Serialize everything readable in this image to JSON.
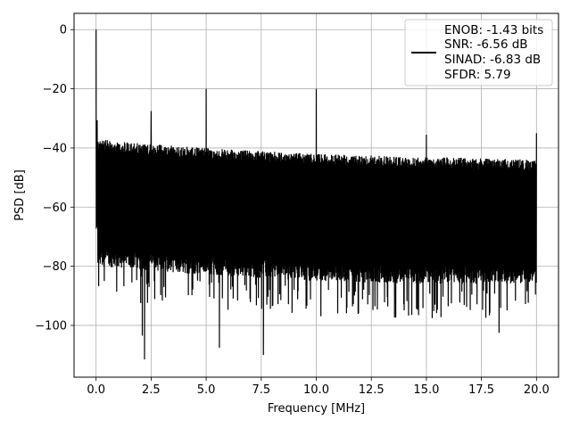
{
  "chart_data": {
    "type": "line",
    "title": "",
    "xlabel": "Frequency [MHz]",
    "ylabel": "PSD [dB]",
    "xlim": [
      -1.0,
      21.0
    ],
    "ylim": [
      -117.5,
      5.5
    ],
    "xticks": [
      0.0,
      2.5,
      5.0,
      7.5,
      10.0,
      12.5,
      15.0,
      17.5,
      20.0
    ],
    "xtick_labels": [
      "0.0",
      "2.5",
      "5.0",
      "7.5",
      "10.0",
      "12.5",
      "15.0",
      "17.5",
      "20.0"
    ],
    "yticks": [
      0,
      -20,
      -40,
      -60,
      -80,
      -100
    ],
    "ytick_labels": [
      "0",
      "−20",
      "−40",
      "−60",
      "−80",
      "−100"
    ],
    "grid": true,
    "legend_placement": "top-right",
    "line_color": "#000000",
    "series": [
      {
        "legend_lines": [
          "ENOB: -1.43 bits",
          "SNR: -6.56 dB",
          "SINAD: -6.83 dB",
          "SFDR: 5.79"
        ],
        "noise_floor_top": [
          [
            0.1,
            -37
          ],
          [
            2.0,
            -38.5
          ],
          [
            5.0,
            -40
          ],
          [
            10.0,
            -42
          ],
          [
            15.0,
            -43
          ],
          [
            20.0,
            -44
          ]
        ],
        "noise_floor_bottom": [
          [
            0.1,
            -80
          ],
          [
            5.0,
            -83
          ],
          [
            10.0,
            -85
          ],
          [
            15.0,
            -86
          ],
          [
            20.0,
            -86
          ]
        ],
        "spurs": [
          {
            "x": 0.0,
            "y": 0
          },
          {
            "x": 0.05,
            "y": -28
          },
          {
            "x": 2.5,
            "y": -27.5
          },
          {
            "x": 5.0,
            "y": -20
          },
          {
            "x": 10.0,
            "y": -20
          },
          {
            "x": 15.0,
            "y": -35.5
          },
          {
            "x": 20.0,
            "y": -35
          }
        ],
        "deep_nulls": [
          {
            "x": 2.1,
            "y": -103.5
          },
          {
            "x": 2.2,
            "y": -111.5
          },
          {
            "x": 5.6,
            "y": -107.5
          },
          {
            "x": 7.6,
            "y": -110
          },
          {
            "x": 18.3,
            "y": -102.5
          }
        ]
      }
    ]
  }
}
